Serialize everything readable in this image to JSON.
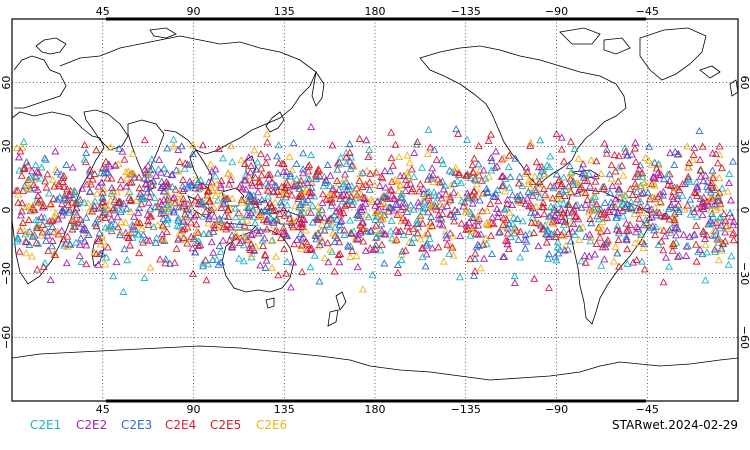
{
  "map": {
    "projection": "equirectangular",
    "lon_range": [
      0,
      360
    ],
    "lat_range": [
      -90,
      90
    ],
    "lon_ticks": [
      {
        "label": "45"
      },
      {
        "label": "90"
      },
      {
        "label": "135"
      },
      {
        "label": "180"
      },
      {
        "label": "−135"
      },
      {
        "label": "−90"
      },
      {
        "label": "−45"
      }
    ],
    "lat_ticks": [
      {
        "label": "60"
      },
      {
        "label": "30"
      },
      {
        "label": "0"
      },
      {
        "label": "−30"
      },
      {
        "label": "−60"
      }
    ],
    "grid": "dotted",
    "coastline_color": "#000000"
  },
  "legend": {
    "items": [
      {
        "label": "C2E1",
        "color": "#1fb3c6"
      },
      {
        "label": "C2E2",
        "color": "#a321b7"
      },
      {
        "label": "C2E3",
        "color": "#2a6fd6"
      },
      {
        "label": "C2E4",
        "color": "#e01a3c"
      },
      {
        "label": "C2E5",
        "color": "#d3201f"
      },
      {
        "label": "C2E6",
        "color": "#f0b21a"
      }
    ]
  },
  "product_label": "STARwet.2024-02-29",
  "observations": {
    "marker": "open-triangle",
    "lat_band": [
      -40,
      42
    ]
  }
}
